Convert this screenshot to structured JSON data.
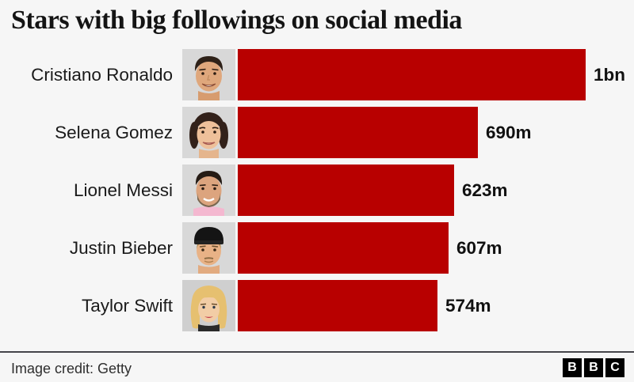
{
  "title": "Stars with big followings on social media",
  "chart_data": {
    "type": "bar",
    "orientation": "horizontal",
    "title": "Stars with big followings on social media",
    "categories": [
      "Cristiano Ronaldo",
      "Selena Gomez",
      "Lionel Messi",
      "Justin Bieber",
      "Taylor Swift"
    ],
    "values_millions": [
      1000,
      690,
      623,
      607,
      574
    ],
    "value_labels": [
      "1bn",
      "690m",
      "623m",
      "607m",
      "574m"
    ],
    "xlim": [
      0,
      1000
    ],
    "unit": "social media followers",
    "grid": false,
    "legend": false,
    "bar_color": "#b80000"
  },
  "footer": {
    "credit": "Image credit: Getty",
    "logo_letters": [
      "B",
      "B",
      "C"
    ]
  },
  "colors": {
    "background": "#f6f6f6",
    "bar": "#b80000",
    "photo_background": "#d8d8d8",
    "divider": "#45454a",
    "text": "#1a1a1a"
  }
}
